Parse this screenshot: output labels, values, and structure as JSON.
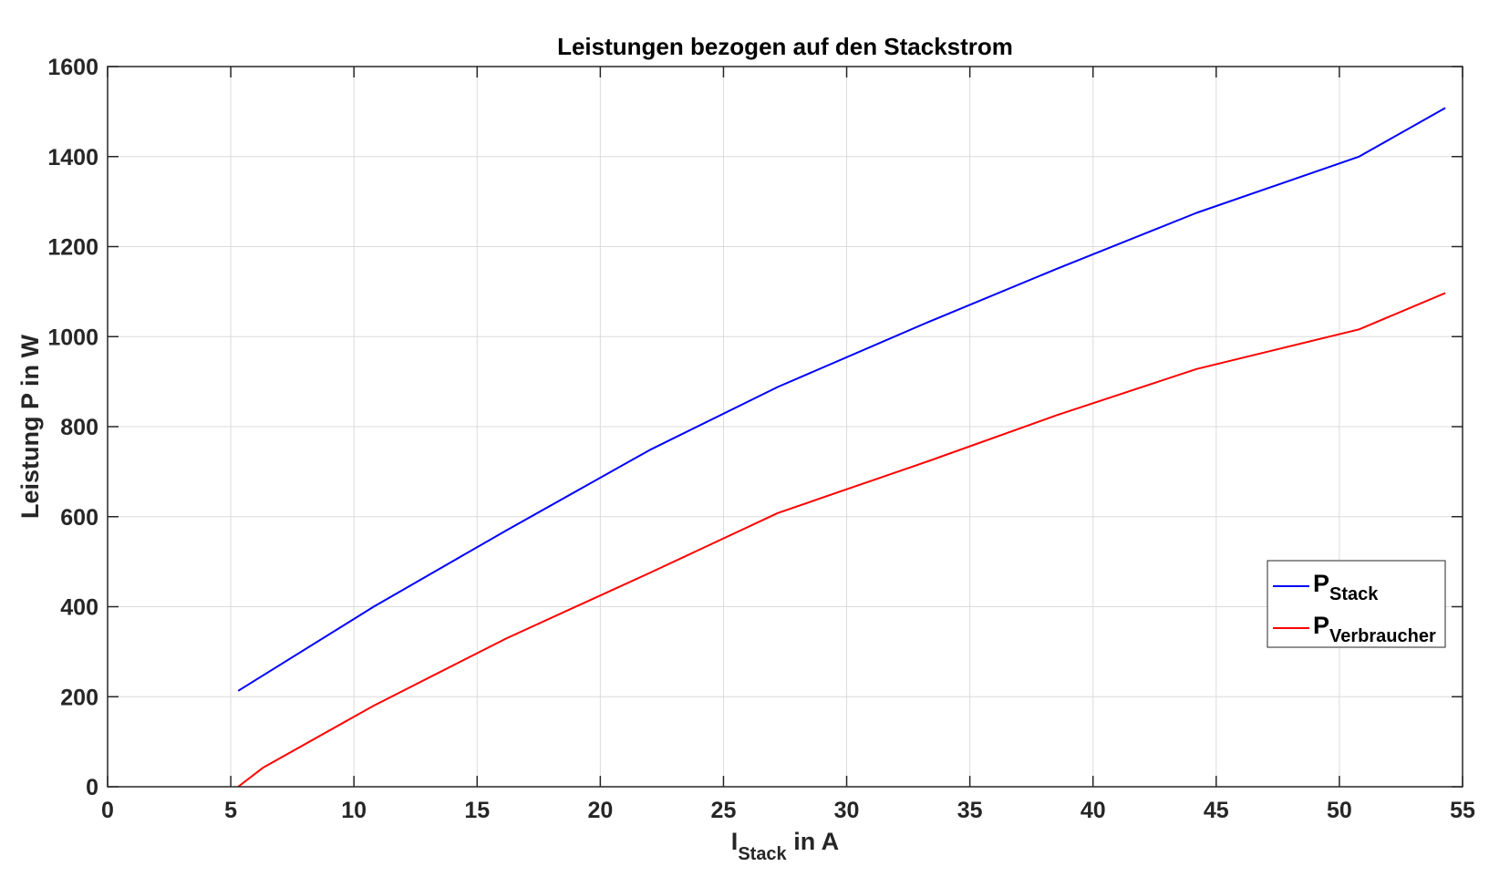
{
  "chart_data": {
    "type": "line",
    "title": "Leistungen bezogen auf den Stackstrom",
    "xlabel": {
      "main": "I",
      "sub": "Stack",
      "suffix": " in A"
    },
    "ylabel": "Leistung P in W",
    "xlim": [
      0,
      55
    ],
    "ylim": [
      0,
      1600
    ],
    "xticks": [
      0,
      5,
      10,
      15,
      20,
      25,
      30,
      35,
      40,
      45,
      50,
      55
    ],
    "yticks": [
      0,
      200,
      400,
      600,
      800,
      1000,
      1200,
      1400,
      1600
    ],
    "grid": true,
    "legend_position": "lower-right",
    "series": [
      {
        "name": "Stack",
        "legend_main": "P",
        "legend_sub": "Stack",
        "color": "#0000ff",
        "x": [
          5.3,
          10.8,
          16.2,
          22.0,
          27.2,
          33.3,
          38.5,
          44.2,
          50.8,
          54.3
        ],
        "y": [
          213,
          400,
          570,
          748,
          888,
          1032,
          1150,
          1275,
          1400,
          1508
        ]
      },
      {
        "name": "Verbraucher",
        "legend_main": "P",
        "legend_sub": "Verbraucher",
        "color": "#ff0000",
        "x": [
          5.3,
          6.3,
          10.8,
          16.2,
          22.0,
          27.2,
          33.3,
          38.5,
          44.2,
          50.8,
          54.3
        ],
        "y": [
          0,
          42,
          180,
          330,
          475,
          608,
          723,
          825,
          928,
          1016,
          1097
        ]
      }
    ]
  }
}
